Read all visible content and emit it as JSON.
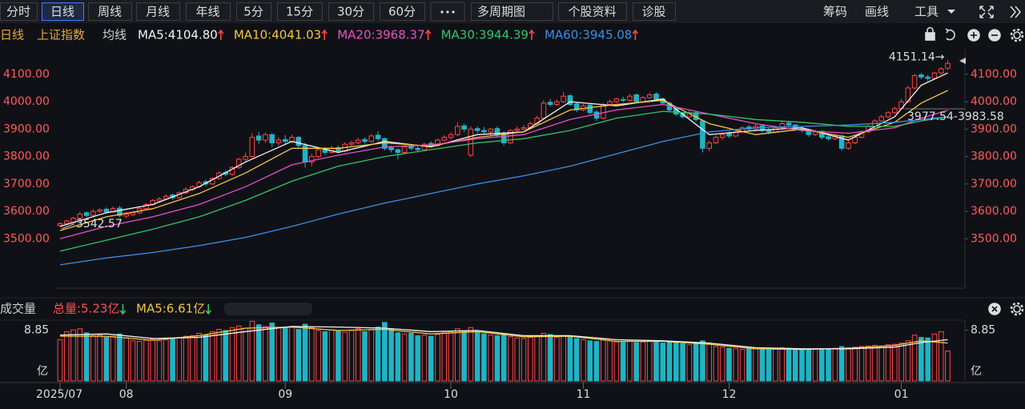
{
  "toolbar": {
    "left": [
      "分时",
      "日线",
      "周线",
      "月线",
      "年线",
      "5分",
      "15分",
      "30分",
      "60分"
    ],
    "active": 1,
    "menus": [
      "多周期图",
      "个股资料",
      "诊股"
    ],
    "right": [
      "筹码",
      "画线",
      "工具"
    ]
  },
  "header": {
    "period": "日线",
    "name": "上证指数",
    "ma_title": "均线"
  },
  "chart_data": [
    {
      "type": "candlestick",
      "up_color": "#ff4545",
      "down_color": "#1fb4c4",
      "xlim": [
        -0.6,
        136.6
      ],
      "ylim": [
        3320,
        4190
      ],
      "yticks": [
        {
          "value": 3500,
          "label": "3500.00"
        },
        {
          "value": 3600,
          "label": "3600.00"
        },
        {
          "value": 3700,
          "label": "3700.00"
        },
        {
          "value": 3800,
          "label": "3800.00"
        },
        {
          "value": 3900,
          "label": "3900.00"
        },
        {
          "value": 4000,
          "label": "4000.00"
        },
        {
          "value": 4100,
          "label": "4100.00"
        }
      ],
      "high_label": "4151.14→",
      "low_label": "3542.57",
      "range_label": "3977.54-3983.58",
      "candles": [
        [
          3548,
          3562,
          3542.57,
          3555
        ],
        [
          3555,
          3570,
          3550,
          3565
        ],
        [
          3560,
          3580,
          3555,
          3575
        ],
        [
          3575,
          3598,
          3570,
          3590
        ],
        [
          3595,
          3600,
          3578,
          3585
        ],
        [
          3585,
          3608,
          3582,
          3600
        ],
        [
          3600,
          3612,
          3595,
          3605
        ],
        [
          3608,
          3615,
          3592,
          3598
        ],
        [
          3598,
          3618,
          3595,
          3610
        ],
        [
          3612,
          3620,
          3578,
          3585
        ],
        [
          3583,
          3598,
          3575,
          3590
        ],
        [
          3588,
          3600,
          3582,
          3595
        ],
        [
          3595,
          3615,
          3590,
          3610
        ],
        [
          3610,
          3630,
          3605,
          3625
        ],
        [
          3625,
          3645,
          3620,
          3640
        ],
        [
          3638,
          3652,
          3632,
          3645
        ],
        [
          3645,
          3662,
          3640,
          3655
        ],
        [
          3660,
          3665,
          3642,
          3650
        ],
        [
          3650,
          3672,
          3646,
          3668
        ],
        [
          3668,
          3688,
          3662,
          3680
        ],
        [
          3680,
          3695,
          3675,
          3690
        ],
        [
          3690,
          3712,
          3685,
          3705
        ],
        [
          3708,
          3715,
          3692,
          3700
        ],
        [
          3700,
          3725,
          3696,
          3720
        ],
        [
          3720,
          3746,
          3715,
          3740
        ],
        [
          3742,
          3750,
          3728,
          3735
        ],
        [
          3735,
          3765,
          3730,
          3760
        ],
        [
          3760,
          3796,
          3755,
          3790
        ],
        [
          3790,
          3815,
          3780,
          3800
        ],
        [
          3800,
          3885,
          3795,
          3870
        ],
        [
          3875,
          3890,
          3845,
          3860
        ],
        [
          3860,
          3888,
          3850,
          3880
        ],
        [
          3880,
          3885,
          3835,
          3850
        ],
        [
          3850,
          3870,
          3840,
          3860
        ],
        [
          3862,
          3878,
          3845,
          3855
        ],
        [
          3855,
          3880,
          3848,
          3870
        ],
        [
          3870,
          3875,
          3830,
          3840
        ],
        [
          3840,
          3850,
          3760,
          3780
        ],
        [
          3780,
          3810,
          3765,
          3800
        ],
        [
          3800,
          3832,
          3795,
          3825
        ],
        [
          3828,
          3835,
          3805,
          3815
        ],
        [
          3815,
          3838,
          3810,
          3830
        ],
        [
          3832,
          3840,
          3812,
          3820
        ],
        [
          3820,
          3852,
          3815,
          3845
        ],
        [
          3845,
          3858,
          3838,
          3850
        ],
        [
          3850,
          3868,
          3845,
          3860
        ],
        [
          3862,
          3870,
          3848,
          3855
        ],
        [
          3855,
          3882,
          3850,
          3875
        ],
        [
          3878,
          3892,
          3855,
          3865
        ],
        [
          3865,
          3870,
          3822,
          3830
        ],
        [
          3832,
          3840,
          3815,
          3825
        ],
        [
          3825,
          3830,
          3790,
          3815
        ],
        [
          3815,
          3842,
          3810,
          3835
        ],
        [
          3838,
          3845,
          3822,
          3830
        ],
        [
          3830,
          3838,
          3815,
          3825
        ],
        [
          3825,
          3850,
          3820,
          3845
        ],
        [
          3848,
          3856,
          3832,
          3840
        ],
        [
          3840,
          3866,
          3835,
          3860
        ],
        [
          3860,
          3878,
          3855,
          3870
        ],
        [
          3870,
          3888,
          3862,
          3880
        ],
        [
          3880,
          3925,
          3875,
          3910
        ],
        [
          3912,
          3920,
          3890,
          3900
        ],
        [
          3805,
          3910,
          3798,
          3900
        ],
        [
          3902,
          3910,
          3885,
          3895
        ],
        [
          3895,
          3908,
          3880,
          3890
        ],
        [
          3890,
          3905,
          3878,
          3900
        ],
        [
          3902,
          3910,
          3870,
          3880
        ],
        [
          3885,
          3892,
          3840,
          3850
        ],
        [
          3850,
          3900,
          3845,
          3895
        ],
        [
          3895,
          3910,
          3888,
          3900
        ],
        [
          3900,
          3915,
          3895,
          3905
        ],
        [
          3905,
          3928,
          3900,
          3920
        ],
        [
          3920,
          3948,
          3915,
          3940
        ],
        [
          3940,
          4005,
          3935,
          3995
        ],
        [
          3998,
          4010,
          3982,
          3990
        ],
        [
          3990,
          4008,
          3985,
          4000
        ],
        [
          4000,
          4035,
          3995,
          4020
        ],
        [
          4022,
          4028,
          3985,
          3990
        ],
        [
          3992,
          3998,
          3962,
          3970
        ],
        [
          3970,
          3992,
          3965,
          3985
        ],
        [
          3988,
          3995,
          3955,
          3960
        ],
        [
          3962,
          3970,
          3930,
          3940
        ],
        [
          3940,
          3995,
          3935,
          3990
        ],
        [
          3990,
          4008,
          3985,
          4000
        ],
        [
          4000,
          4015,
          3995,
          4010
        ],
        [
          4008,
          4018,
          3998,
          4005
        ],
        [
          4005,
          4028,
          4000,
          4020
        ],
        [
          4025,
          4030,
          3995,
          4000
        ],
        [
          4000,
          4020,
          3995,
          4015
        ],
        [
          4015,
          4032,
          4010,
          4025
        ],
        [
          4028,
          4035,
          4005,
          4010
        ],
        [
          4010,
          4015,
          3988,
          3995
        ],
        [
          3995,
          4000,
          3962,
          3970
        ],
        [
          3975,
          3980,
          3948,
          3955
        ],
        [
          3958,
          3962,
          3938,
          3945
        ],
        [
          3945,
          3968,
          3940,
          3960
        ],
        [
          3960,
          3965,
          3928,
          3935
        ],
        [
          3930,
          3935,
          3815,
          3830
        ],
        [
          3830,
          3858,
          3820,
          3850
        ],
        [
          3850,
          3878,
          3845,
          3870
        ],
        [
          3870,
          3888,
          3862,
          3880
        ],
        [
          3885,
          3892,
          3868,
          3875
        ],
        [
          3875,
          3898,
          3870,
          3890
        ],
        [
          3890,
          3912,
          3885,
          3905
        ],
        [
          3908,
          3915,
          3892,
          3900
        ],
        [
          3900,
          3918,
          3895,
          3910
        ],
        [
          3912,
          3916,
          3888,
          3895
        ],
        [
          3898,
          3905,
          3882,
          3890
        ],
        [
          3890,
          3912,
          3885,
          3905
        ],
        [
          3905,
          3928,
          3900,
          3920
        ],
        [
          3922,
          3930,
          3908,
          3915
        ],
        [
          3915,
          3920,
          3892,
          3900
        ],
        [
          3900,
          3908,
          3888,
          3895
        ],
        [
          3898,
          3902,
          3872,
          3880
        ],
        [
          3880,
          3898,
          3875,
          3890
        ],
        [
          3892,
          3896,
          3862,
          3870
        ],
        [
          3872,
          3878,
          3858,
          3865
        ],
        [
          3865,
          3882,
          3860,
          3875
        ],
        [
          3875,
          3880,
          3822,
          3830
        ],
        [
          3830,
          3858,
          3825,
          3850
        ],
        [
          3850,
          3876,
          3845,
          3870
        ],
        [
          3870,
          3896,
          3866,
          3890
        ],
        [
          3890,
          3916,
          3886,
          3910
        ],
        [
          3910,
          3936,
          3905,
          3930
        ],
        [
          3930,
          3952,
          3925,
          3945
        ],
        [
          3945,
          3966,
          3940,
          3960
        ],
        [
          3960,
          3982,
          3955,
          3975
        ],
        [
          3975,
          4010,
          3970,
          4000
        ],
        [
          4000,
          4058,
          3995,
          4050
        ],
        [
          4050,
          4102,
          4045,
          4095
        ],
        [
          4098,
          4105,
          4082,
          4090
        ],
        [
          4090,
          4098,
          4075,
          4085
        ],
        [
          4085,
          4110,
          4080,
          4105
        ],
        [
          4105,
          4126,
          4098,
          4120
        ],
        [
          4122,
          4151.14,
          4115,
          4140
        ]
      ],
      "line_x": [
        0,
        7,
        14,
        21,
        28,
        35,
        42,
        49,
        56,
        63,
        70,
        77,
        84,
        91,
        98,
        105,
        112,
        119,
        126,
        130,
        134
      ],
      "series": [
        {
          "name": "MA5",
          "label": "MA5:4104.80",
          "color": "#f2f2f2",
          "values": [
            3545,
            3595,
            3625,
            3690,
            3780,
            3855,
            3815,
            3855,
            3835,
            3880,
            3890,
            4000,
            3985,
            4010,
            3880,
            3895,
            3905,
            3860,
            3945,
            4060,
            4104.8
          ]
        },
        {
          "name": "MA10",
          "label": "MA10:4041.03",
          "color": "#f5c542",
          "values": [
            3530,
            3580,
            3610,
            3665,
            3740,
            3830,
            3830,
            3850,
            3838,
            3870,
            3890,
            3970,
            3990,
            4005,
            3920,
            3880,
            3900,
            3870,
            3925,
            3995,
            4041.03
          ]
        },
        {
          "name": "MA20",
          "label": "MA20:3968.37",
          "color": "#e551c8",
          "values": [
            3500,
            3545,
            3580,
            3625,
            3690,
            3770,
            3805,
            3835,
            3842,
            3865,
            3880,
            3935,
            3970,
            3990,
            3955,
            3920,
            3895,
            3885,
            3905,
            3940,
            3968.37
          ]
        },
        {
          "name": "MA30",
          "label": "MA30:3944.39",
          "color": "#35c46a",
          "values": [
            3455,
            3495,
            3535,
            3580,
            3640,
            3710,
            3765,
            3800,
            3825,
            3850,
            3865,
            3895,
            3940,
            3965,
            3955,
            3935,
            3925,
            3910,
            3910,
            3930,
            3944.39
          ]
        },
        {
          "name": "MA60",
          "label": "MA60:3945.08",
          "color": "#3b8fe8",
          "values": [
            3405,
            3430,
            3450,
            3475,
            3505,
            3545,
            3590,
            3630,
            3665,
            3700,
            3730,
            3765,
            3810,
            3855,
            3890,
            3905,
            3910,
            3915,
            3925,
            3935,
            3945.08
          ]
        }
      ]
    },
    {
      "type": "bar",
      "title": "成交量",
      "total_label": "总量:5.23亿",
      "unit": "亿",
      "xlim": [
        -0.6,
        136.6
      ],
      "ylim": [
        0,
        10.6
      ],
      "yticks": [
        8.85
      ],
      "xticks": [
        {
          "value": 0,
          "label": "2025/07"
        },
        {
          "value": 10,
          "label": "08"
        },
        {
          "value": 34,
          "label": "09"
        },
        {
          "value": 59,
          "label": "10"
        },
        {
          "value": 79,
          "label": "11"
        },
        {
          "value": 101,
          "label": "12"
        },
        {
          "value": 127,
          "label": "01"
        }
      ],
      "values": [
        7.2,
        8.6,
        8.9,
        9.1,
        8.4,
        7.9,
        8.0,
        7.6,
        7.8,
        8.2,
        7.5,
        7.0,
        6.9,
        7.1,
        7.3,
        7.0,
        7.2,
        7.4,
        7.6,
        7.8,
        7.9,
        8.3,
        8.0,
        8.6,
        9.0,
        8.8,
        9.3,
        9.6,
        9.2,
        10.4,
        9.8,
        9.5,
        10.1,
        9.3,
        9.2,
        9.4,
        9.0,
        9.9,
        9.3,
        8.8,
        8.6,
        8.9,
        8.7,
        8.5,
        8.8,
        9.1,
        8.6,
        9.0,
        9.4,
        10.2,
        9.0,
        8.4,
        8.2,
        8.3,
        7.9,
        8.0,
        7.8,
        8.1,
        8.4,
        8.6,
        9.1,
        8.7,
        9.3,
        8.5,
        8.2,
        8.0,
        7.9,
        8.2,
        7.7,
        7.5,
        7.4,
        7.6,
        7.8,
        8.3,
        8.1,
        7.6,
        7.9,
        7.7,
        7.4,
        7.2,
        7.0,
        6.9,
        7.3,
        7.0,
        6.8,
        6.9,
        7.1,
        6.7,
        6.8,
        7.0,
        6.9,
        6.6,
        6.8,
        6.7,
        6.5,
        6.3,
        6.6,
        7.0,
        6.4,
        6.0,
        5.9,
        5.7,
        5.6,
        5.5,
        5.7,
        5.6,
        5.5,
        5.4,
        5.6,
        5.8,
        5.7,
        5.5,
        5.6,
        5.4,
        5.5,
        5.6,
        5.5,
        5.7,
        6.0,
        5.8,
        5.9,
        6.0,
        6.1,
        6.2,
        6.1,
        6.3,
        6.4,
        6.6,
        7.0,
        8.0,
        7.6,
        7.5,
        8.2,
        8.6,
        5.23
      ],
      "line_x": [
        0,
        7,
        14,
        21,
        28,
        35,
        42,
        49,
        56,
        63,
        70,
        77,
        84,
        91,
        98,
        105,
        112,
        119,
        126,
        130,
        134
      ],
      "series": [
        {
          "name": "MA5",
          "label": "MA5:6.61亿",
          "color": "#f5c542",
          "values": [
            7.8,
            7.8,
            7.1,
            7.9,
            9.2,
            9.4,
            8.8,
            9.0,
            8.2,
            8.6,
            7.7,
            7.8,
            6.9,
            6.9,
            6.4,
            5.6,
            5.5,
            5.7,
            6.2,
            7.0,
            6.61
          ]
        },
        {
          "color": "#f2f2f2",
          "values": [
            8.0,
            8.2,
            7.4,
            7.6,
            8.6,
            9.5,
            9.4,
            9.2,
            8.6,
            8.8,
            7.9,
            7.9,
            7.2,
            7.0,
            6.6,
            5.8,
            5.6,
            5.6,
            5.9,
            6.7,
            7.2
          ]
        }
      ]
    }
  ]
}
